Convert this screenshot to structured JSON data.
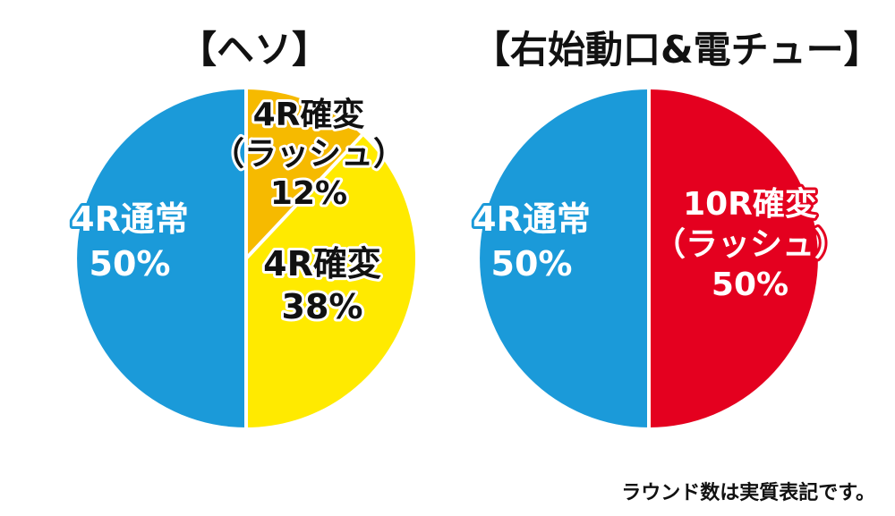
{
  "colors": {
    "blue": "#1b9ad9",
    "yellow": "#ffea00",
    "orange": "#f6ba00",
    "red": "#e4001f",
    "white_text": "#ffffff",
    "black_text": "#111111",
    "divider": "#ffffff"
  },
  "chart_data": [
    {
      "type": "pie",
      "title": "【ヘソ】",
      "slices": [
        {
          "lines": [
            "4R確変",
            "（ラッシュ）",
            "12%"
          ],
          "value": 12,
          "color": "#f6ba00",
          "text_color": "#111111",
          "outline": "#ffffff"
        },
        {
          "lines": [
            "4R確変",
            "38%"
          ],
          "value": 38,
          "color": "#ffea00",
          "text_color": "#111111",
          "outline": "#ffffff"
        },
        {
          "lines": [
            "4R通常",
            "50%"
          ],
          "value": 50,
          "color": "#1b9ad9",
          "text_color": "#ffffff",
          "outline": "#1b9ad9"
        }
      ]
    },
    {
      "type": "pie",
      "title": "【右始動口&電チュー】",
      "slices": [
        {
          "lines": [
            "10R確変",
            "（ラッシュ）",
            "50%"
          ],
          "value": 50,
          "color": "#e4001f",
          "text_color": "#ffffff",
          "outline": "#e4001f"
        },
        {
          "lines": [
            "4R通常",
            "50%"
          ],
          "value": 50,
          "color": "#1b9ad9",
          "text_color": "#ffffff",
          "outline": "#1b9ad9"
        }
      ]
    }
  ],
  "footnote": "ラウンド数は実質表記です。"
}
